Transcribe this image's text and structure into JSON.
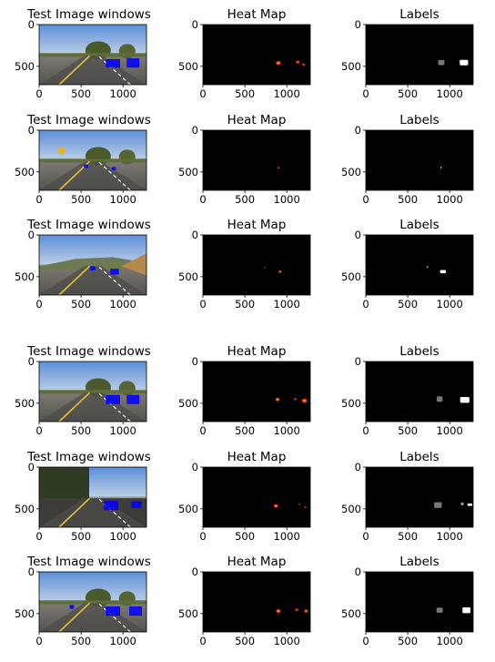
{
  "figure": {
    "titles": {
      "image": "Test Image windows",
      "heat": "Heat Map",
      "labels": "Labels"
    },
    "x_ticks": [
      "0",
      "500",
      "1000"
    ],
    "y_ticks": [
      "0",
      "500"
    ],
    "rows": [
      {
        "scene": "highway-trees",
        "boxes": [
          {
            "x": 880,
            "y": 465,
            "w": 160,
            "h": 90
          },
          {
            "x": 1120,
            "y": 460,
            "w": 140,
            "h": 100
          }
        ],
        "heat": [
          {
            "x": 900,
            "y": 460,
            "r": 40,
            "i": 1.0
          },
          {
            "x": 1130,
            "y": 450,
            "r": 35,
            "i": 0.75
          },
          {
            "x": 1200,
            "y": 480,
            "r": 30,
            "i": 0.6
          }
        ],
        "labels": [
          {
            "x": 900,
            "y": 455,
            "w": 75,
            "h": 60,
            "shade": "#777777"
          },
          {
            "x": 1170,
            "y": 455,
            "w": 100,
            "h": 65,
            "shade": "#ffffff"
          }
        ]
      },
      {
        "scene": "highway-sign",
        "boxes": [
          {
            "x": 560,
            "y": 430,
            "w": 40,
            "h": 30
          },
          {
            "x": 890,
            "y": 460,
            "w": 40,
            "h": 25
          }
        ],
        "heat": [
          {
            "x": 900,
            "y": 450,
            "r": 9,
            "i": 1.0
          }
        ],
        "labels": [
          {
            "x": 895,
            "y": 445,
            "w": 14,
            "h": 14,
            "shade": "#ffffff"
          }
        ]
      },
      {
        "scene": "highway-hills",
        "boxes": [
          {
            "x": 640,
            "y": 400,
            "w": 50,
            "h": 40
          },
          {
            "x": 900,
            "y": 440,
            "w": 90,
            "h": 60
          }
        ],
        "heat": [
          {
            "x": 740,
            "y": 390,
            "r": 16,
            "i": 0.5
          },
          {
            "x": 920,
            "y": 440,
            "r": 24,
            "i": 1.0
          }
        ],
        "labels": [
          {
            "x": 735,
            "y": 385,
            "w": 25,
            "h": 25,
            "shade": "#777777"
          },
          {
            "x": 920,
            "y": 440,
            "w": 70,
            "h": 40,
            "shade": "#ffffff"
          }
        ]
      },
      {
        "scene": "highway-trees",
        "boxes": [
          {
            "x": 880,
            "y": 455,
            "w": 160,
            "h": 100
          },
          {
            "x": 1120,
            "y": 455,
            "w": 140,
            "h": 100
          }
        ],
        "heat": [
          {
            "x": 890,
            "y": 455,
            "r": 35,
            "i": 1.0
          },
          {
            "x": 1100,
            "y": 450,
            "r": 25,
            "i": 0.65
          },
          {
            "x": 1210,
            "y": 470,
            "r": 45,
            "i": 0.95
          }
        ],
        "labels": [
          {
            "x": 880,
            "y": 450,
            "w": 70,
            "h": 65,
            "shade": "#777777"
          },
          {
            "x": 1180,
            "y": 460,
            "w": 110,
            "h": 70,
            "shade": "#ffffff"
          }
        ]
      },
      {
        "scene": "highway-shadows",
        "boxes": [
          {
            "x": 860,
            "y": 460,
            "w": 160,
            "h": 100
          },
          {
            "x": 1160,
            "y": 450,
            "w": 110,
            "h": 70
          }
        ],
        "heat": [
          {
            "x": 870,
            "y": 465,
            "r": 35,
            "i": 1.0
          },
          {
            "x": 1150,
            "y": 445,
            "r": 20,
            "i": 0.5
          },
          {
            "x": 1220,
            "y": 480,
            "r": 22,
            "i": 0.55
          }
        ],
        "labels": [
          {
            "x": 860,
            "y": 455,
            "w": 90,
            "h": 70,
            "shade": "#777777"
          },
          {
            "x": 1150,
            "y": 440,
            "w": 35,
            "h": 35,
            "shade": "#999999"
          },
          {
            "x": 1240,
            "y": 450,
            "w": 60,
            "h": 30,
            "shade": "#ffffff"
          }
        ]
      },
      {
        "scene": "highway-fence",
        "boxes": [
          {
            "x": 390,
            "y": 420,
            "w": 40,
            "h": 35
          },
          {
            "x": 880,
            "y": 470,
            "w": 160,
            "h": 100
          },
          {
            "x": 1150,
            "y": 470,
            "w": 140,
            "h": 100
          }
        ],
        "heat": [
          {
            "x": 900,
            "y": 470,
            "r": 38,
            "i": 1.0
          },
          {
            "x": 1120,
            "y": 455,
            "r": 30,
            "i": 0.7
          },
          {
            "x": 1230,
            "y": 470,
            "r": 35,
            "i": 0.85
          }
        ],
        "labels": [
          {
            "x": 880,
            "y": 460,
            "w": 75,
            "h": 60,
            "shade": "#777777"
          },
          {
            "x": 1200,
            "y": 460,
            "w": 95,
            "h": 70,
            "shade": "#ffffff"
          }
        ]
      }
    ]
  },
  "colors": {
    "blue_box": "#0000ff",
    "heat_background": "#000000",
    "label_background": "#000000",
    "heat_hot": "#ff3300",
    "heat_peak": "#ffdd44"
  }
}
